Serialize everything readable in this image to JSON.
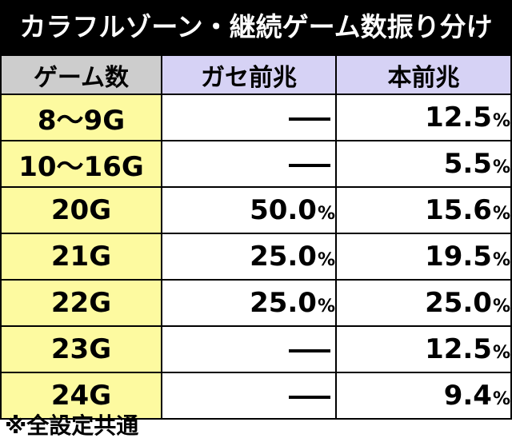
{
  "title": "カラフルゾーン・継続ゲーム数振り分け",
  "table": {
    "headers": [
      "ゲーム数",
      "ガセ前兆",
      "本前兆"
    ],
    "rows": [
      {
        "games": "8〜9G",
        "gase": "—",
        "gase_pct": "",
        "hon": "12.5",
        "hon_pct": "%"
      },
      {
        "games": "10〜16G",
        "gase": "—",
        "gase_pct": "",
        "hon": "5.5",
        "hon_pct": "%"
      },
      {
        "games": "20G",
        "gase": "50.0",
        "gase_pct": "%",
        "hon": "15.6",
        "hon_pct": "%"
      },
      {
        "games": "21G",
        "gase": "25.0",
        "gase_pct": "%",
        "hon": "19.5",
        "hon_pct": "%"
      },
      {
        "games": "22G",
        "gase": "25.0",
        "gase_pct": "%",
        "hon": "25.0",
        "hon_pct": "%"
      },
      {
        "games": "23G",
        "gase": "—",
        "gase_pct": "",
        "hon": "12.5",
        "hon_pct": "%"
      },
      {
        "games": "24G",
        "gase": "—",
        "gase_pct": "",
        "hon": "9.4",
        "hon_pct": "%"
      }
    ]
  },
  "footnote": "※全設定共通",
  "colors": {
    "title_bg": "#000000",
    "header_games_bg": "#cdcdcd",
    "header_prob_bg": "#d6d2f5",
    "games_cell_bg": "#fdfaa0"
  }
}
